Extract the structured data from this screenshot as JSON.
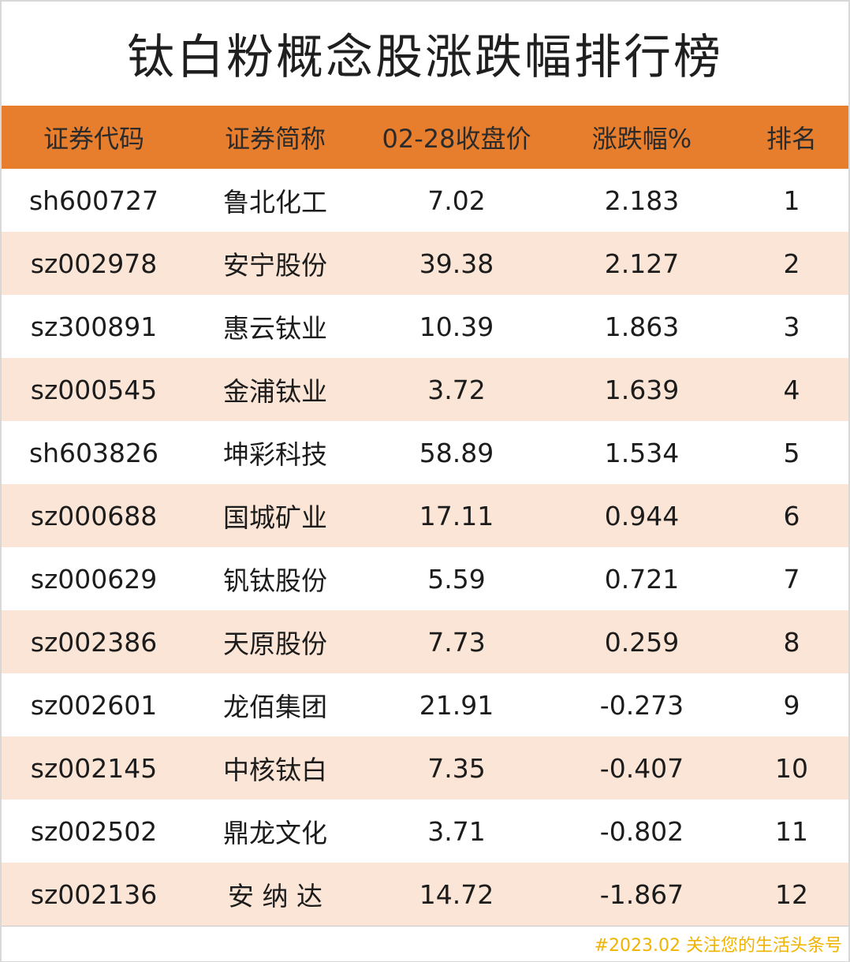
{
  "title": "钛白粉概念股涨跌幅排行榜",
  "headers": [
    "证券代码",
    "证券简称",
    "02-28收盘价",
    "涨跌幅%",
    "排名"
  ],
  "rows": [
    [
      "sh600727",
      "鲁北化工",
      "7.02",
      "2.183",
      "1"
    ],
    [
      "sz002978",
      "安宁股份",
      "39.38",
      "2.127",
      "2"
    ],
    [
      "sz300891",
      "惠云钛业",
      "10.39",
      "1.863",
      "3"
    ],
    [
      "sz000545",
      "金浦钛业",
      "3.72",
      "1.639",
      "4"
    ],
    [
      "sh603826",
      "坤彩科技",
      "58.89",
      "1.534",
      "5"
    ],
    [
      "sz000688",
      "国城矿业",
      "17.11",
      "0.944",
      "6"
    ],
    [
      "sz000629",
      "钒钛股份",
      "5.59",
      "0.721",
      "7"
    ],
    [
      "sz002386",
      "天原股份",
      "7.73",
      "0.259",
      "8"
    ],
    [
      "sz002601",
      "龙佰集团",
      "21.91",
      "-0.273",
      "9"
    ],
    [
      "sz002145",
      "中核钛白",
      "7.35",
      "-0.407",
      "10"
    ],
    [
      "sz002502",
      "鼎龙文化",
      "3.71",
      "-0.802",
      "11"
    ],
    [
      "sz002136",
      "安 纳 达",
      "14.72",
      "-1.867",
      "12"
    ]
  ],
  "watermark": "#2023.02 关注您的生活头条号",
  "colors": {
    "header_bg": "#e67e2e",
    "stripe_bg": "#fbe5d6",
    "watermark": "#f0b300"
  }
}
